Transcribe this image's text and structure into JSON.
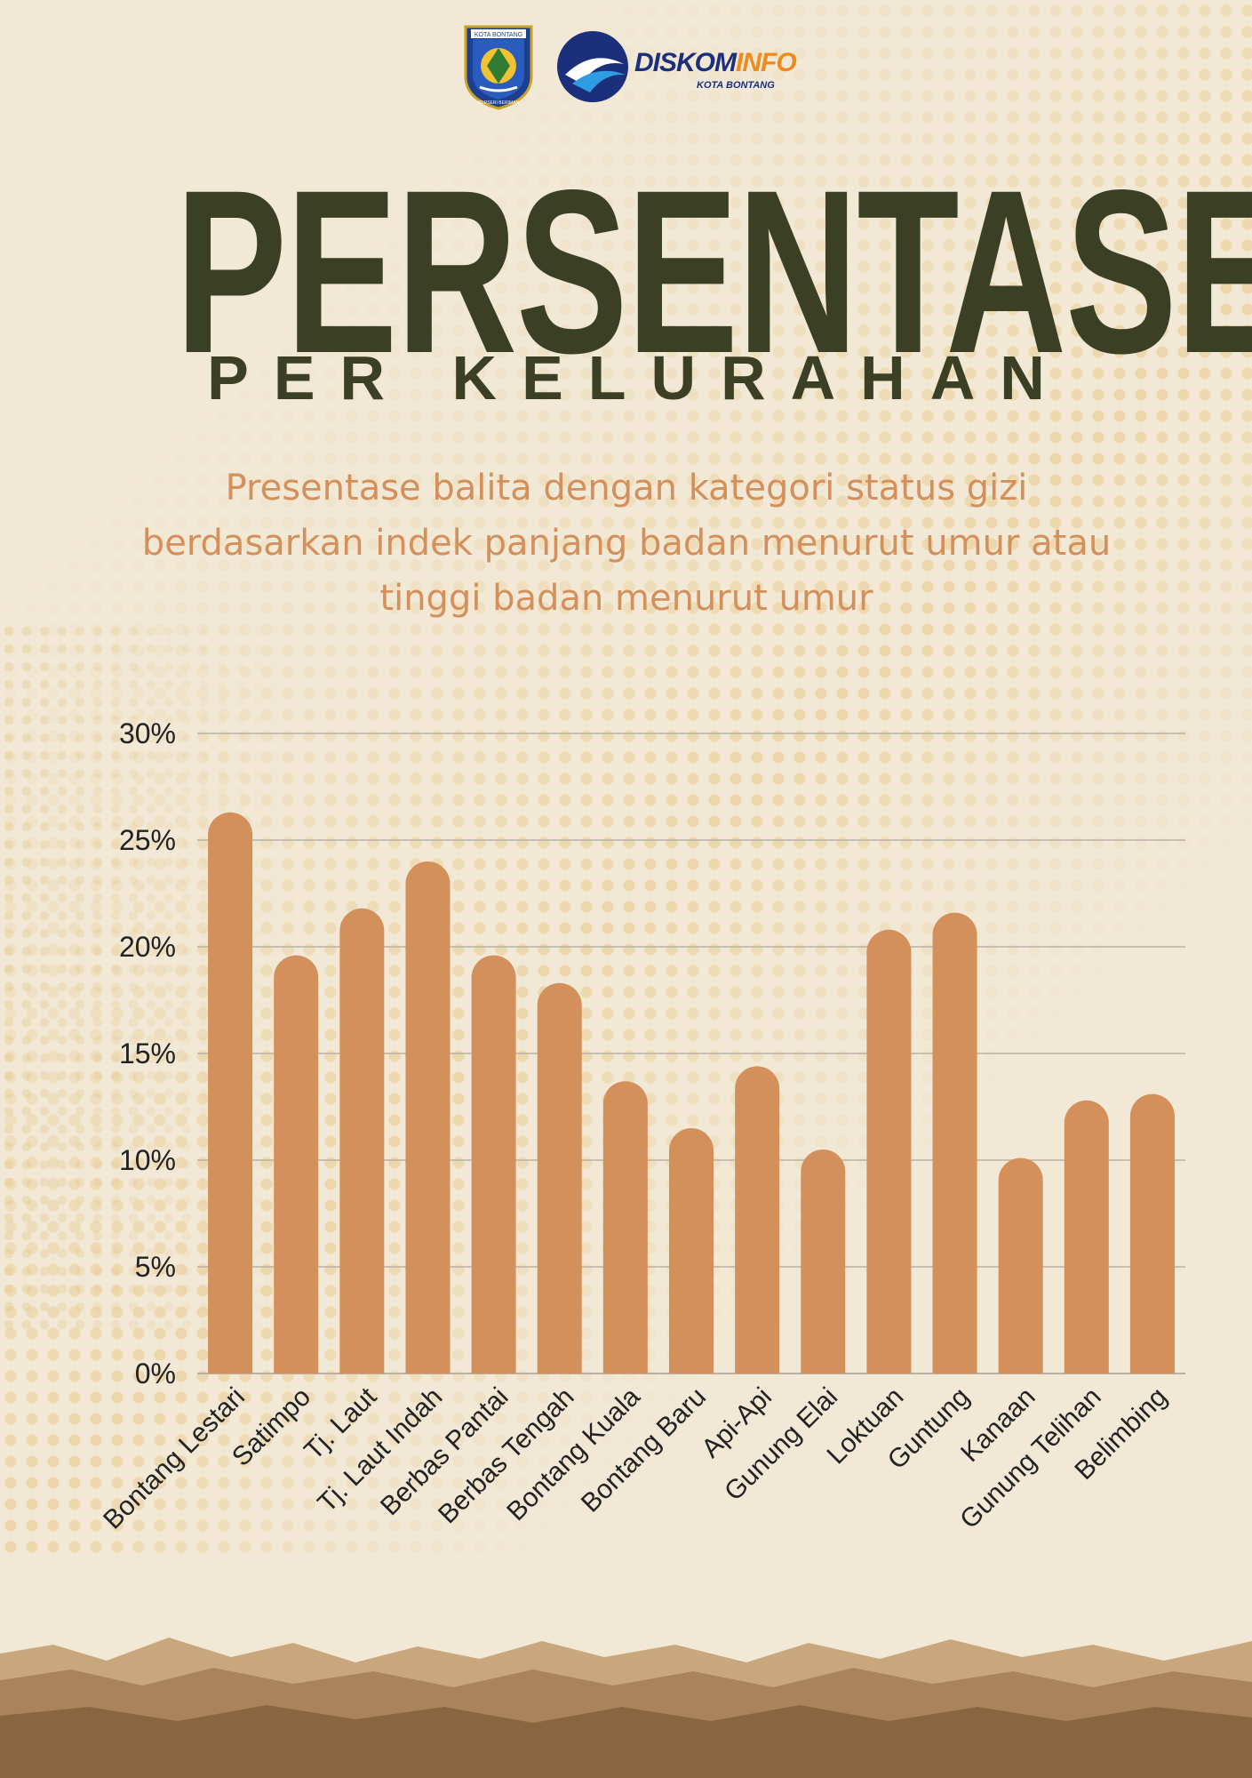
{
  "logos": {
    "seal_text_top": "KOTA BONTANG",
    "seal_text_bottom": "BERSERI BERIMAN",
    "diskominfo_a": "DISKOM",
    "diskominfo_b": "INFO",
    "diskominfo_sub": "KOTA BONTANG"
  },
  "header": {
    "title": "PERSENTASE",
    "subtitle": "PER KELURAHAN",
    "description": "Presentase balita dengan kategori status gizi berdasarkan indek panjang badan menurut umur atau tinggi badan menurut umur"
  },
  "colors": {
    "bar": "#d4905b",
    "title": "#3b3f24",
    "background": "#f1e8d6",
    "grid": "#b9b1a3"
  },
  "chart_data": {
    "type": "bar",
    "title": "",
    "xlabel": "",
    "ylabel": "",
    "ylim": [
      0,
      30
    ],
    "yticks": [
      "0%",
      "5%",
      "10%",
      "15%",
      "20%",
      "25%",
      "30%"
    ],
    "grid": true,
    "categories": [
      "Bontang Lestari",
      "Satimpo",
      "Tj. Laut",
      "Tj. Laut Indah",
      "Berbas Pantai",
      "Berbas Tengah",
      "Bontang Kuala",
      "Bontang Baru",
      "Api-Api",
      "Gunung Elai",
      "Loktuan",
      "Guntung",
      "Kanaan",
      "Gunung Telihan",
      "Belimbing"
    ],
    "values": [
      26.3,
      19.6,
      21.8,
      24.0,
      19.6,
      18.3,
      13.7,
      11.5,
      14.4,
      10.5,
      20.8,
      21.6,
      10.1,
      12.8,
      13.1
    ]
  }
}
